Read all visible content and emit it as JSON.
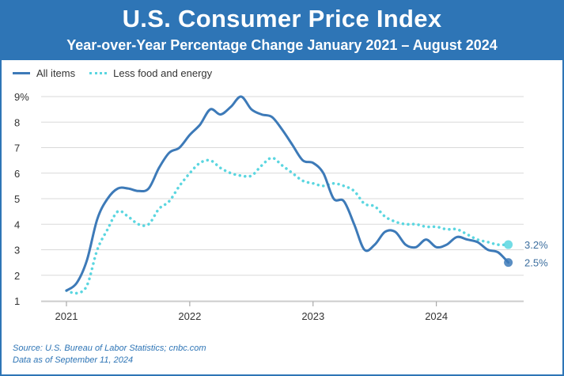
{
  "header": {
    "title": "U.S. Consumer Price Index",
    "subtitle": "Year-over-Year Percentage Change January 2021 – August 2024"
  },
  "legend": {
    "items": [
      {
        "label": "All items",
        "style": "solid",
        "color": "#3d7ab8"
      },
      {
        "label": "Less food and energy",
        "style": "dotted",
        "color": "#5bd6e0"
      }
    ]
  },
  "footer": {
    "source": "Source: U.S. Bureau of Labor Statistics; cnbc.com",
    "date": "Data as of September 11, 2024"
  },
  "colors": {
    "banner": "#2e75b6",
    "all_items": "#3d7ab8",
    "core": "#5bd6e0",
    "grid": "#d9d9d9"
  },
  "chart_data": {
    "type": "line",
    "title": "U.S. Consumer Price Index",
    "subtitle": "Year-over-Year Percentage Change January 2021 – August 2024",
    "xlabel": "",
    "ylabel": "",
    "x_ticks": [
      "2021",
      "2022",
      "2023",
      "2024"
    ],
    "y_ticks": [
      "1",
      "2",
      "3",
      "4",
      "5",
      "6",
      "7",
      "8",
      "9%"
    ],
    "ylim": [
      1,
      9
    ],
    "xlim": [
      "2021-01",
      "2024-08"
    ],
    "grid": true,
    "legend_position": "top-left",
    "x": [
      "2021-01",
      "2021-02",
      "2021-03",
      "2021-04",
      "2021-05",
      "2021-06",
      "2021-07",
      "2021-08",
      "2021-09",
      "2021-10",
      "2021-11",
      "2021-12",
      "2022-01",
      "2022-02",
      "2022-03",
      "2022-04",
      "2022-05",
      "2022-06",
      "2022-07",
      "2022-08",
      "2022-09",
      "2022-10",
      "2022-11",
      "2022-12",
      "2023-01",
      "2023-02",
      "2023-03",
      "2023-04",
      "2023-05",
      "2023-06",
      "2023-07",
      "2023-08",
      "2023-09",
      "2023-10",
      "2023-11",
      "2023-12",
      "2024-01",
      "2024-02",
      "2024-03",
      "2024-04",
      "2024-05",
      "2024-06",
      "2024-07",
      "2024-08"
    ],
    "series": [
      {
        "name": "All items",
        "values": [
          1.4,
          1.7,
          2.6,
          4.2,
          5.0,
          5.4,
          5.4,
          5.3,
          5.4,
          6.2,
          6.8,
          7.0,
          7.5,
          7.9,
          8.5,
          8.3,
          8.6,
          9.0,
          8.5,
          8.3,
          8.2,
          7.7,
          7.1,
          6.5,
          6.4,
          6.0,
          5.0,
          4.9,
          4.0,
          3.0,
          3.2,
          3.7,
          3.7,
          3.2,
          3.1,
          3.4,
          3.1,
          3.2,
          3.5,
          3.4,
          3.3,
          3.0,
          2.9,
          2.5
        ],
        "end_label": "2.5%"
      },
      {
        "name": "Less food and energy",
        "values": [
          1.4,
          1.3,
          1.6,
          3.0,
          3.8,
          4.5,
          4.3,
          4.0,
          4.0,
          4.6,
          4.9,
          5.5,
          6.0,
          6.4,
          6.5,
          6.2,
          6.0,
          5.9,
          5.9,
          6.3,
          6.6,
          6.3,
          6.0,
          5.7,
          5.6,
          5.5,
          5.6,
          5.5,
          5.3,
          4.8,
          4.7,
          4.3,
          4.1,
          4.0,
          4.0,
          3.9,
          3.9,
          3.8,
          3.8,
          3.6,
          3.4,
          3.3,
          3.2,
          3.2
        ],
        "end_label": "3.2%"
      }
    ]
  }
}
